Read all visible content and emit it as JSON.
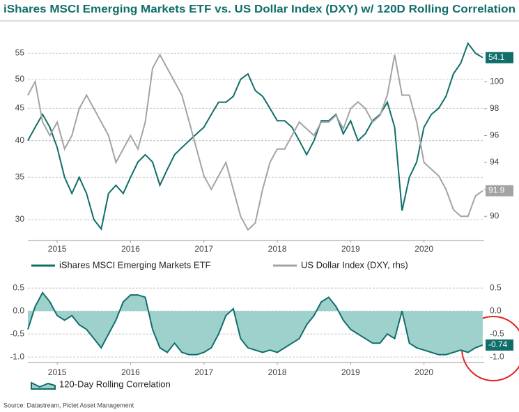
{
  "chart_data": [
    {
      "type": "line",
      "title": "iShares MSCI Emerging Markets ETF vs. US Dollar Index (DXY) w/ 120D Rolling Correlation",
      "x": [
        2015.1,
        2015.2,
        2015.3,
        2015.4,
        2015.5,
        2015.6,
        2015.7,
        2015.8,
        2015.9,
        2016.0,
        2016.1,
        2016.2,
        2016.3,
        2016.4,
        2016.5,
        2016.6,
        2016.7,
        2016.8,
        2016.9,
        2017.0,
        2017.1,
        2017.2,
        2017.3,
        2017.4,
        2017.5,
        2017.6,
        2017.7,
        2017.8,
        2017.9,
        2018.0,
        2018.1,
        2018.2,
        2018.3,
        2018.4,
        2018.5,
        2018.6,
        2018.7,
        2018.8,
        2018.9,
        2019.0,
        2019.1,
        2019.2,
        2019.3,
        2019.4,
        2019.5,
        2019.6,
        2019.7,
        2019.8,
        2019.9,
        2020.0,
        2020.1,
        2020.2,
        2020.3,
        2020.4,
        2020.5,
        2020.6,
        2020.7,
        2020.8,
        2020.9,
        2021.0,
        2021.1,
        2021.2,
        2021.3
      ],
      "xlim": [
        2015.1,
        2021.32
      ],
      "xticks": [
        {
          "value": 2015.5,
          "label": "2015"
        },
        {
          "value": 2016.5,
          "label": "2016"
        },
        {
          "value": 2017.5,
          "label": "2017"
        },
        {
          "value": 2018.5,
          "label": "2018"
        },
        {
          "value": 2019.5,
          "label": "2019"
        },
        {
          "value": 2020.5,
          "label": "2020"
        }
      ],
      "yscale": "log",
      "ylim": [
        27.8,
        60.3
      ],
      "yticks": [
        30,
        35,
        40,
        45,
        50,
        55
      ],
      "y2lim": [
        88.2,
        104
      ],
      "y2ticks": [
        90,
        92,
        94,
        96,
        98,
        100
      ],
      "grid": true,
      "series": [
        {
          "name": "iShares MSCI Emerging Markets ETF",
          "color": "#0f6e6a",
          "values": [
            40,
            42,
            44,
            42,
            39,
            35,
            33,
            35,
            33,
            30,
            29,
            33,
            34,
            33,
            35,
            37,
            38,
            37,
            34,
            36,
            38,
            39,
            40,
            41,
            42,
            44,
            46,
            46,
            47,
            50,
            51,
            48,
            47,
            45,
            43,
            43,
            42,
            40,
            38,
            40,
            43,
            43,
            44,
            41,
            43,
            40,
            41,
            43,
            44,
            46,
            42,
            31,
            35,
            37,
            42,
            44,
            45,
            47,
            51,
            53,
            57,
            55,
            54.1
          ]
        },
        {
          "name": "US Dollar Index (DXY, rhs)",
          "color": "#a3a3a3",
          "axis": "y2",
          "values": [
            99,
            100,
            97,
            96,
            97,
            95,
            96,
            98,
            99,
            98,
            97,
            96,
            94,
            95,
            96,
            95,
            97,
            101,
            102,
            101,
            100,
            99,
            97,
            95,
            93,
            92,
            93,
            94,
            92,
            90,
            89,
            89.5,
            92,
            94,
            95,
            95,
            96,
            97,
            96.5,
            96,
            97,
            97,
            97.5,
            96.5,
            98,
            98.5,
            98,
            97,
            97.5,
            99,
            102,
            99,
            99,
            97,
            94,
            93.5,
            93,
            92,
            90.5,
            90,
            90,
            91.5,
            91.9
          ]
        }
      ]
    },
    {
      "type": "area",
      "x": [
        2015.1,
        2015.2,
        2015.3,
        2015.4,
        2015.5,
        2015.6,
        2015.7,
        2015.8,
        2015.9,
        2016.0,
        2016.1,
        2016.2,
        2016.3,
        2016.4,
        2016.5,
        2016.6,
        2016.7,
        2016.8,
        2016.9,
        2017.0,
        2017.1,
        2017.2,
        2017.3,
        2017.4,
        2017.5,
        2017.6,
        2017.7,
        2017.8,
        2017.9,
        2018.0,
        2018.1,
        2018.2,
        2018.3,
        2018.4,
        2018.5,
        2018.6,
        2018.7,
        2018.8,
        2018.9,
        2019.0,
        2019.1,
        2019.2,
        2019.3,
        2019.4,
        2019.5,
        2019.6,
        2019.7,
        2019.8,
        2019.9,
        2020.0,
        2020.1,
        2020.2,
        2020.3,
        2020.4,
        2020.5,
        2020.6,
        2020.7,
        2020.8,
        2020.9,
        2021.0,
        2021.1,
        2021.2,
        2021.3
      ],
      "xlim": [
        2015.1,
        2021.32
      ],
      "xticks": [
        {
          "value": 2015.5,
          "label": "2015"
        },
        {
          "value": 2016.5,
          "label": "2016"
        },
        {
          "value": 2017.5,
          "label": "2017"
        },
        {
          "value": 2018.5,
          "label": "2018"
        },
        {
          "value": 2019.5,
          "label": "2019"
        },
        {
          "value": 2020.5,
          "label": "2020"
        }
      ],
      "ylim": [
        -1.12,
        0.7
      ],
      "yticks": [
        0.5,
        {
          "value": 0,
          "label": "0.0"
        },
        -0.5,
        {
          "value": -1,
          "label": "-1.0"
        }
      ],
      "grid": true,
      "series": [
        {
          "name": "120-Day Rolling Correlation",
          "color": "#0f6e6a",
          "fill": "#9fd1cc",
          "values": [
            -0.4,
            0.1,
            0.4,
            0.2,
            -0.1,
            -0.2,
            -0.1,
            -0.3,
            -0.4,
            -0.6,
            -0.8,
            -0.5,
            -0.2,
            0.2,
            0.35,
            0.35,
            0.3,
            -0.4,
            -0.8,
            -0.9,
            -0.7,
            -0.9,
            -0.95,
            -0.95,
            -0.9,
            -0.8,
            -0.5,
            -0.1,
            0.05,
            -0.6,
            -0.8,
            -0.85,
            -0.9,
            -0.85,
            -0.9,
            -0.8,
            -0.7,
            -0.6,
            -0.3,
            -0.1,
            0.2,
            0.3,
            0.1,
            -0.2,
            -0.4,
            -0.5,
            -0.6,
            -0.7,
            -0.7,
            -0.5,
            -0.6,
            0.0,
            -0.7,
            -0.8,
            -0.85,
            -0.9,
            -0.95,
            -0.95,
            -0.9,
            -0.85,
            -0.9,
            -0.8,
            -0.74
          ]
        }
      ]
    }
  ],
  "source": "Source: Datastream, Pictet Asset Management"
}
